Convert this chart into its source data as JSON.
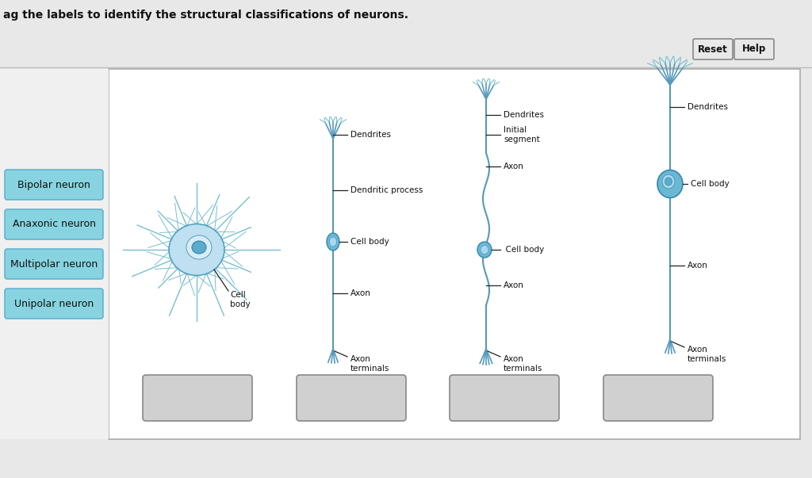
{
  "title": "ag the labels to identify the structural classifications of neurons.",
  "bg_color": "#e8e8e8",
  "panel_bg": "#ffffff",
  "button_labels": [
    "Bipolar neuron",
    "Anaxonic neuron",
    "Multipolar neuron",
    "Unipolar neuron"
  ],
  "button_color": "#87d4e0",
  "button_border": "#55aacc",
  "drop_box_color": "#d0d0d0",
  "drop_box_border": "#888888",
  "neuron_line_color": "#5599bb",
  "neuron_branch_color": "#7abfcf",
  "cell_body_fill": "#6ab8d4",
  "cell_body_inner": "#a8d8ee",
  "annotation_color": "#222222",
  "label_fontsize": 7.5,
  "btn_fontsize": 9.0,
  "title_fontsize": 10
}
